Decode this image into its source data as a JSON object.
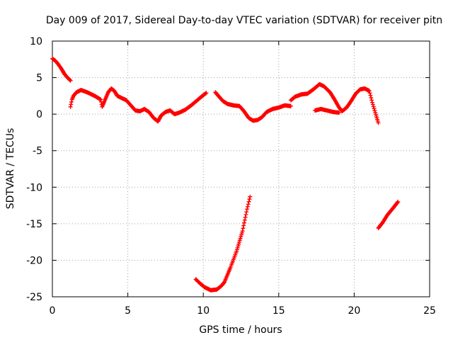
{
  "chart_data": {
    "type": "scatter",
    "title": "Day 009 of 2017, Sidereal Day-to-day VTEC variation (SDTVAR) for receiver pitn",
    "xlabel": "GPS time / hours",
    "ylabel": "SDTVAR / TECUs",
    "xlim": [
      0,
      25
    ],
    "ylim": [
      -25,
      10
    ],
    "xticks": [
      0,
      5,
      10,
      15,
      20,
      25
    ],
    "yticks": [
      -25,
      -20,
      -15,
      -10,
      -5,
      0,
      5,
      10
    ],
    "grid": true,
    "marker": "+",
    "series": [
      {
        "name": "SDTVAR",
        "color": "#ff0000",
        "segments": [
          [
            [
              0.0,
              7.6
            ],
            [
              0.2,
              7.3
            ],
            [
              0.4,
              6.8
            ],
            [
              0.6,
              6.2
            ],
            [
              0.8,
              5.5
            ],
            [
              1.0,
              5.0
            ],
            [
              1.2,
              4.6
            ]
          ],
          [
            [
              1.2,
              1.0
            ],
            [
              1.3,
              2.0
            ],
            [
              1.4,
              2.5
            ],
            [
              1.6,
              3.0
            ],
            [
              1.9,
              3.3
            ],
            [
              2.3,
              3.0
            ],
            [
              2.8,
              2.5
            ],
            [
              3.2,
              2.0
            ],
            [
              3.3,
              1.0
            ],
            [
              3.5,
              2.0
            ],
            [
              3.7,
              3.0
            ],
            [
              3.9,
              3.5
            ],
            [
              4.1,
              3.2
            ],
            [
              4.3,
              2.5
            ],
            [
              4.6,
              2.2
            ],
            [
              4.9,
              1.9
            ],
            [
              5.2,
              1.2
            ],
            [
              5.5,
              0.5
            ],
            [
              5.8,
              0.4
            ],
            [
              6.1,
              0.7
            ],
            [
              6.4,
              0.3
            ],
            [
              6.7,
              -0.5
            ],
            [
              7.0,
              -1.0
            ],
            [
              7.2,
              -0.2
            ],
            [
              7.5,
              0.3
            ],
            [
              7.8,
              0.5
            ],
            [
              8.1,
              0.0
            ],
            [
              8.4,
              0.2
            ],
            [
              8.8,
              0.6
            ],
            [
              9.2,
              1.2
            ],
            [
              9.6,
              1.9
            ],
            [
              10.0,
              2.6
            ],
            [
              10.2,
              2.9
            ]
          ],
          [
            [
              10.8,
              3.0
            ],
            [
              11.0,
              2.5
            ],
            [
              11.3,
              1.8
            ],
            [
              11.6,
              1.4
            ],
            [
              12.0,
              1.2
            ],
            [
              12.4,
              1.1
            ],
            [
              12.7,
              0.4
            ],
            [
              13.0,
              -0.5
            ],
            [
              13.3,
              -0.9
            ],
            [
              13.6,
              -0.8
            ],
            [
              13.9,
              -0.4
            ],
            [
              14.2,
              0.3
            ],
            [
              14.6,
              0.7
            ],
            [
              15.0,
              0.9
            ],
            [
              15.4,
              1.2
            ],
            [
              15.8,
              1.1
            ]
          ],
          [
            [
              15.8,
              1.9
            ],
            [
              16.1,
              2.4
            ],
            [
              16.5,
              2.7
            ],
            [
              16.9,
              2.8
            ],
            [
              17.3,
              3.4
            ],
            [
              17.7,
              4.1
            ],
            [
              18.0,
              3.8
            ],
            [
              18.4,
              3.0
            ],
            [
              18.7,
              2.0
            ],
            [
              19.0,
              0.9
            ],
            [
              19.2,
              0.4
            ],
            [
              19.5,
              0.9
            ],
            [
              19.8,
              1.8
            ],
            [
              20.1,
              2.8
            ],
            [
              20.4,
              3.4
            ],
            [
              20.7,
              3.5
            ],
            [
              21.0,
              3.2
            ],
            [
              21.2,
              1.6
            ],
            [
              21.4,
              0.2
            ],
            [
              21.6,
              -1.2
            ]
          ],
          [
            [
              17.4,
              0.5
            ],
            [
              17.8,
              0.7
            ],
            [
              18.2,
              0.5
            ],
            [
              18.6,
              0.3
            ],
            [
              19.0,
              0.2
            ]
          ],
          [
            [
              9.5,
              -22.6
            ],
            [
              9.8,
              -23.2
            ],
            [
              10.1,
              -23.7
            ],
            [
              10.5,
              -24.1
            ],
            [
              10.9,
              -24.0
            ],
            [
              11.2,
              -23.5
            ],
            [
              11.4,
              -23.0
            ],
            [
              11.8,
              -21.0
            ],
            [
              12.2,
              -18.8
            ],
            [
              12.6,
              -16.0
            ],
            [
              12.9,
              -13.0
            ],
            [
              13.1,
              -11.3
            ]
          ],
          [
            [
              21.6,
              -15.6
            ],
            [
              21.9,
              -14.8
            ],
            [
              22.2,
              -13.8
            ],
            [
              22.6,
              -12.8
            ],
            [
              22.9,
              -12.0
            ]
          ]
        ]
      }
    ]
  }
}
